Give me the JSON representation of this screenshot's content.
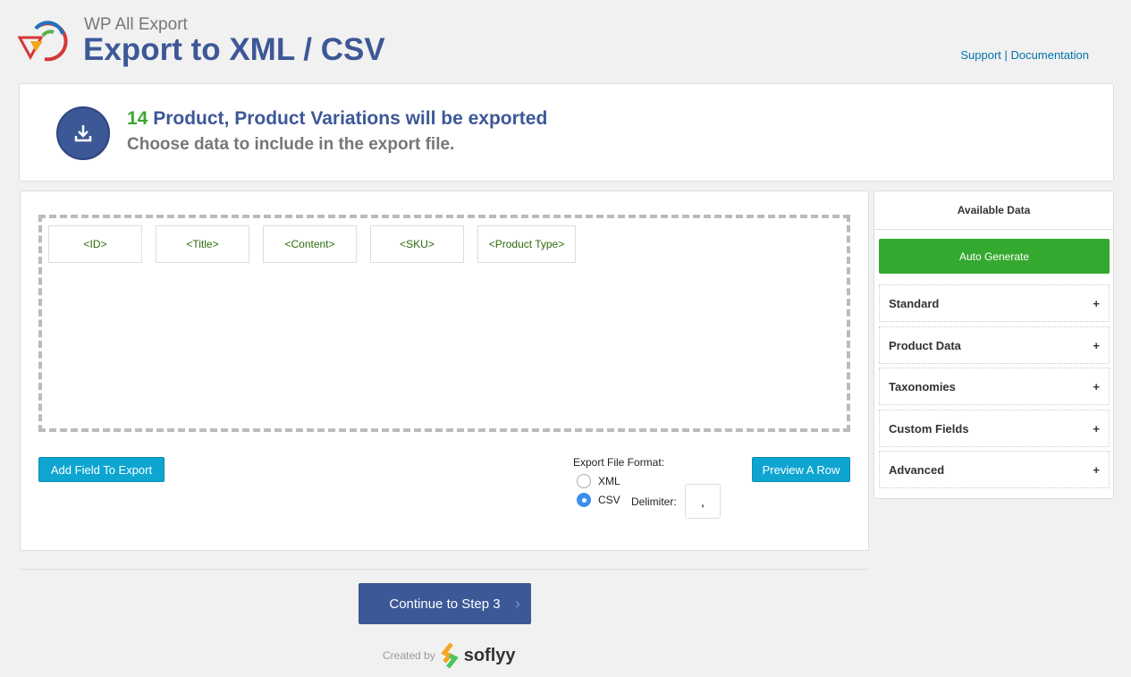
{
  "header": {
    "subtitle": "WP All Export",
    "title": "Export to XML / CSV",
    "support": "Support",
    "separator": "|",
    "documentation": "Documentation"
  },
  "summary": {
    "count": "14",
    "headline": "Product, Product Variations will be exported",
    "instruction": "Choose data to include in the export file."
  },
  "fields": [
    "<ID>",
    "<Title>",
    "<Content>",
    "<SKU>",
    "<Product Type>"
  ],
  "actions": {
    "add_field": "Add Field To Export",
    "preview": "Preview A Row"
  },
  "format": {
    "label": "Export File Format:",
    "options": [
      "XML",
      "CSV"
    ],
    "selected": "CSV",
    "delimiter_label": "Delimiter:",
    "delimiter_value": ","
  },
  "sidebar": {
    "title": "Available Data",
    "auto_generate": "Auto Generate",
    "sections": [
      "Standard",
      "Product Data",
      "Taxonomies",
      "Custom Fields",
      "Advanced"
    ],
    "expand_symbol": "+"
  },
  "footer": {
    "continue": "Continue to Step 3",
    "created_by": "Created by",
    "brand": "soflyy"
  },
  "colors": {
    "brand_blue": "#3d5897",
    "green": "#34a92f",
    "button_blue": "#0ea5d1"
  }
}
